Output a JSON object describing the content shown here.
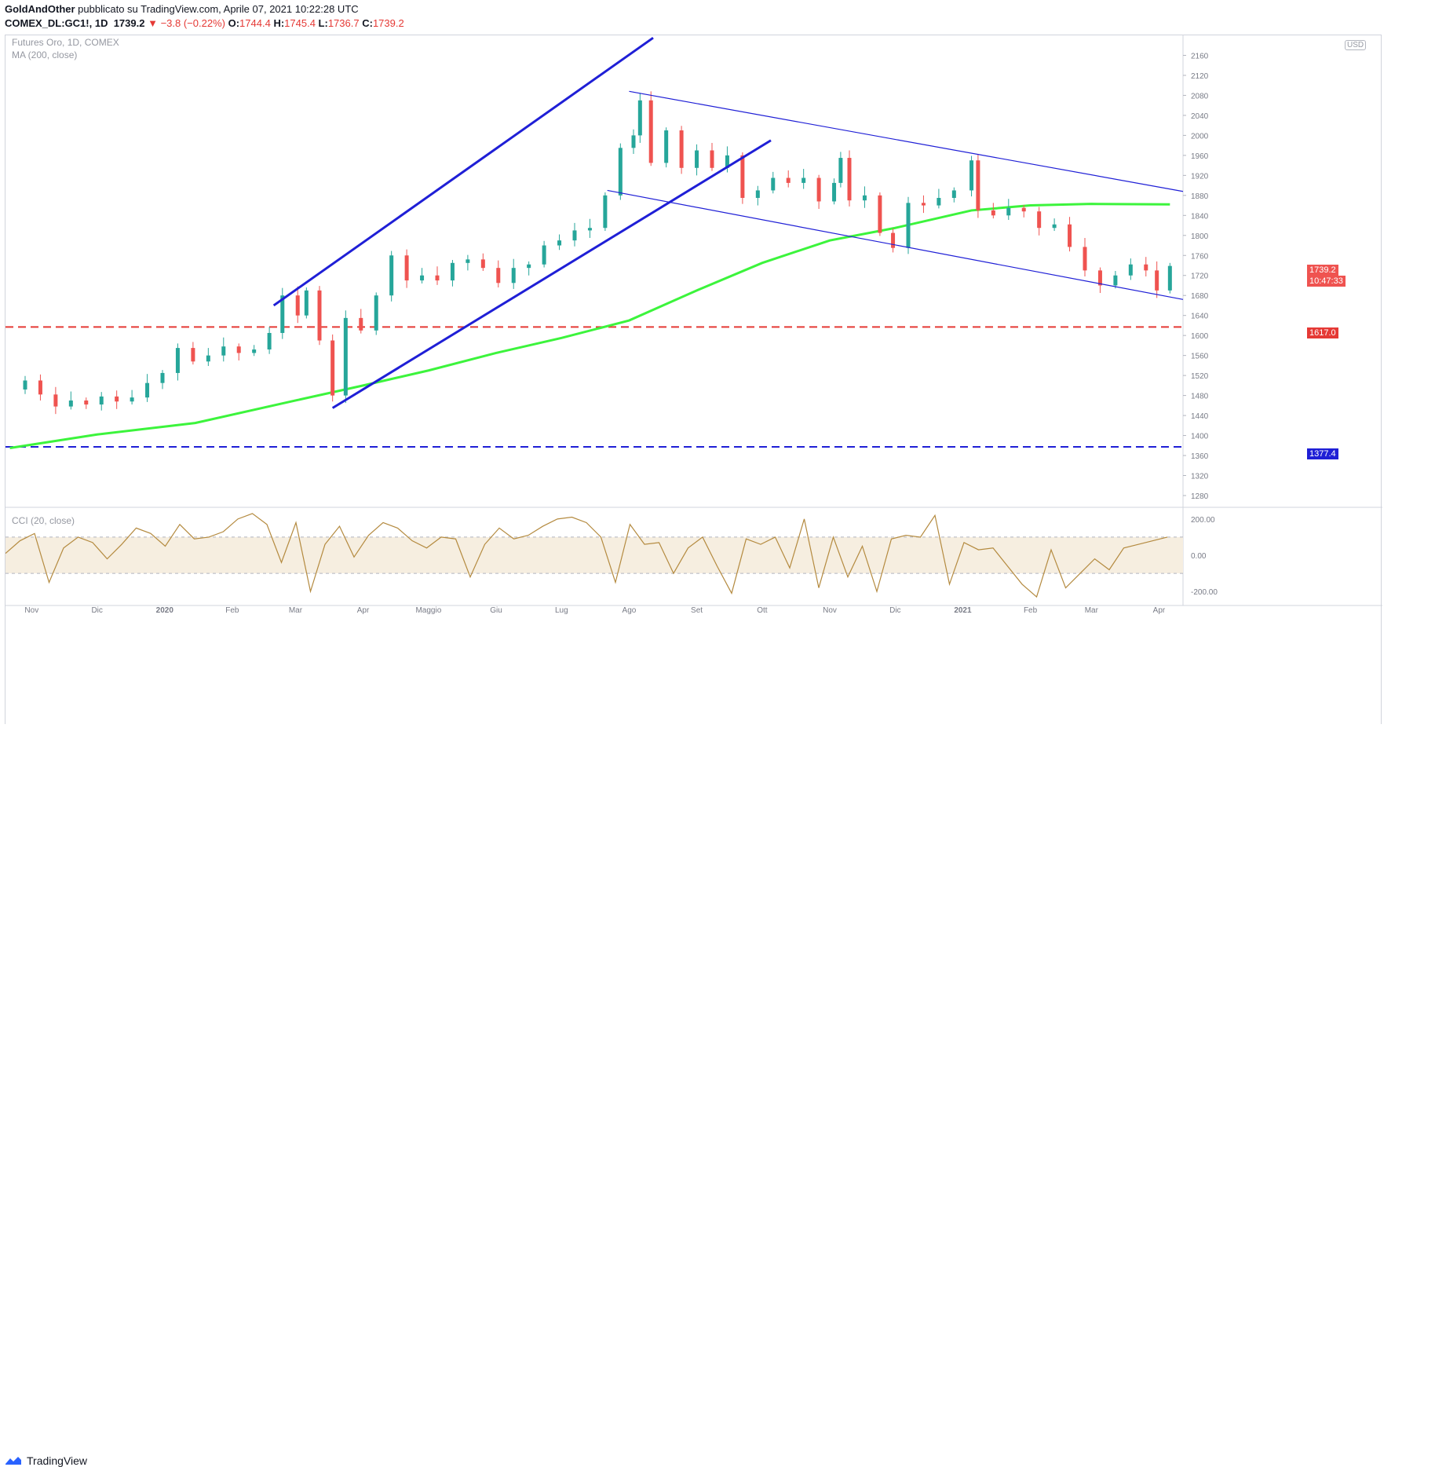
{
  "header": {
    "author": "GoldAndOther",
    "published": "pubblicato su TradingView.com, Aprile 07, 2021 10:22:28 UTC",
    "symbol": "COMEX_DL:GC1!, 1D",
    "price": "1739.2",
    "change": "▼ −3.8 (−0.22%)",
    "o_label": "O:",
    "o_val": "1744.4",
    "h_label": "H:",
    "h_val": "1745.4",
    "l_label": "L:",
    "l_val": "1736.7",
    "c_label": "C:",
    "c_val": "1739.2"
  },
  "legend": {
    "instrument": "Futures Oro, 1D, COMEX",
    "ma": "MA (200, close)",
    "cci": "CCI (20, close)",
    "currency": "USD"
  },
  "tags": {
    "last_price": "1739.2",
    "countdown": "10:47:33",
    "red_level": "1617.0",
    "blue_level": "1377.4"
  },
  "footer": {
    "brand": "TradingView"
  },
  "colors": {
    "up": "#26a69a",
    "down": "#ef5350",
    "ma": "#3cf43c",
    "channel": "#1f1fd6",
    "red_line": "#e53935",
    "blue_line": "#1f1fd6",
    "cci": "#b48a3f",
    "cci_band": "#f6eee0"
  },
  "chart_data": {
    "type": "candlestick",
    "symbol": "COMEX_DL:GC1!",
    "timeframe": "1D",
    "price_axis": {
      "ticks": [
        1280,
        1320,
        1360,
        1400,
        1440,
        1480,
        1520,
        1560,
        1600,
        1640,
        1680,
        1720,
        1760,
        1800,
        1840,
        1880,
        1920,
        1960,
        2000,
        2040,
        2080,
        2120,
        2160
      ],
      "ylim": [
        1258,
        2200
      ]
    },
    "time_axis": {
      "labels": [
        "Nov",
        "Dic",
        "2020",
        "Feb",
        "Mar",
        "Apr",
        "Maggio",
        "Giu",
        "Lug",
        "Ago",
        "Set",
        "Ott",
        "Nov",
        "Dic",
        "2021",
        "Feb",
        "Mar",
        "Apr"
      ]
    },
    "price_series": [
      {
        "d": "2019-10-22",
        "c": 1492
      },
      {
        "d": "2019-10-29",
        "c": 1510
      },
      {
        "d": "2019-11-05",
        "c": 1482
      },
      {
        "d": "2019-11-12",
        "c": 1458
      },
      {
        "d": "2019-11-19",
        "c": 1470
      },
      {
        "d": "2019-11-26",
        "c": 1462
      },
      {
        "d": "2019-12-03",
        "c": 1478
      },
      {
        "d": "2019-12-10",
        "c": 1468
      },
      {
        "d": "2019-12-17",
        "c": 1476
      },
      {
        "d": "2019-12-24",
        "c": 1505
      },
      {
        "d": "2019-12-31",
        "c": 1525
      },
      {
        "d": "2020-01-07",
        "c": 1575
      },
      {
        "d": "2020-01-14",
        "c": 1548
      },
      {
        "d": "2020-01-21",
        "c": 1560
      },
      {
        "d": "2020-01-28",
        "c": 1578
      },
      {
        "d": "2020-02-04",
        "c": 1565
      },
      {
        "d": "2020-02-11",
        "c": 1572
      },
      {
        "d": "2020-02-18",
        "c": 1605
      },
      {
        "d": "2020-02-24",
        "c": 1680
      },
      {
        "d": "2020-03-02",
        "c": 1640
      },
      {
        "d": "2020-03-06",
        "c": 1690
      },
      {
        "d": "2020-03-12",
        "c": 1590
      },
      {
        "d": "2020-03-18",
        "c": 1480
      },
      {
        "d": "2020-03-24",
        "c": 1635
      },
      {
        "d": "2020-03-31",
        "c": 1610
      },
      {
        "d": "2020-04-07",
        "c": 1680
      },
      {
        "d": "2020-04-14",
        "c": 1760
      },
      {
        "d": "2020-04-21",
        "c": 1710
      },
      {
        "d": "2020-04-28",
        "c": 1720
      },
      {
        "d": "2020-05-05",
        "c": 1710
      },
      {
        "d": "2020-05-12",
        "c": 1745
      },
      {
        "d": "2020-05-19",
        "c": 1752
      },
      {
        "d": "2020-05-26",
        "c": 1735
      },
      {
        "d": "2020-06-02",
        "c": 1705
      },
      {
        "d": "2020-06-09",
        "c": 1735
      },
      {
        "d": "2020-06-16",
        "c": 1742
      },
      {
        "d": "2020-06-23",
        "c": 1780
      },
      {
        "d": "2020-06-30",
        "c": 1790
      },
      {
        "d": "2020-07-07",
        "c": 1810
      },
      {
        "d": "2020-07-14",
        "c": 1815
      },
      {
        "d": "2020-07-21",
        "c": 1880
      },
      {
        "d": "2020-07-28",
        "c": 1975
      },
      {
        "d": "2020-08-03",
        "c": 2000
      },
      {
        "d": "2020-08-06",
        "c": 2070
      },
      {
        "d": "2020-08-11",
        "c": 1945
      },
      {
        "d": "2020-08-18",
        "c": 2010
      },
      {
        "d": "2020-08-25",
        "c": 1935
      },
      {
        "d": "2020-09-01",
        "c": 1970
      },
      {
        "d": "2020-09-08",
        "c": 1935
      },
      {
        "d": "2020-09-15",
        "c": 1960
      },
      {
        "d": "2020-09-22",
        "c": 1875
      },
      {
        "d": "2020-09-29",
        "c": 1890
      },
      {
        "d": "2020-10-06",
        "c": 1915
      },
      {
        "d": "2020-10-13",
        "c": 1905
      },
      {
        "d": "2020-10-20",
        "c": 1915
      },
      {
        "d": "2020-10-27",
        "c": 1868
      },
      {
        "d": "2020-11-03",
        "c": 1905
      },
      {
        "d": "2020-11-06",
        "c": 1955
      },
      {
        "d": "2020-11-10",
        "c": 1870
      },
      {
        "d": "2020-11-17",
        "c": 1880
      },
      {
        "d": "2020-11-24",
        "c": 1805
      },
      {
        "d": "2020-11-30",
        "c": 1775
      },
      {
        "d": "2020-12-07",
        "c": 1865
      },
      {
        "d": "2020-12-14",
        "c": 1860
      },
      {
        "d": "2020-12-21",
        "c": 1875
      },
      {
        "d": "2020-12-28",
        "c": 1890
      },
      {
        "d": "2021-01-05",
        "c": 1950
      },
      {
        "d": "2021-01-08",
        "c": 1850
      },
      {
        "d": "2021-01-15",
        "c": 1840
      },
      {
        "d": "2021-01-22",
        "c": 1855
      },
      {
        "d": "2021-01-29",
        "c": 1848
      },
      {
        "d": "2021-02-05",
        "c": 1815
      },
      {
        "d": "2021-02-12",
        "c": 1822
      },
      {
        "d": "2021-02-19",
        "c": 1777
      },
      {
        "d": "2021-02-26",
        "c": 1730
      },
      {
        "d": "2021-03-05",
        "c": 1700
      },
      {
        "d": "2021-03-12",
        "c": 1720
      },
      {
        "d": "2021-03-19",
        "c": 1742
      },
      {
        "d": "2021-03-26",
        "c": 1730
      },
      {
        "d": "2021-03-31",
        "c": 1690
      },
      {
        "d": "2021-04-06",
        "c": 1739
      }
    ],
    "ma200": [
      {
        "d": "2019-10-22",
        "v": 1375
      },
      {
        "d": "2019-12-01",
        "v": 1402
      },
      {
        "d": "2020-01-15",
        "v": 1425
      },
      {
        "d": "2020-03-01",
        "v": 1470
      },
      {
        "d": "2020-04-01",
        "v": 1500
      },
      {
        "d": "2020-05-01",
        "v": 1530
      },
      {
        "d": "2020-06-01",
        "v": 1565
      },
      {
        "d": "2020-07-01",
        "v": 1595
      },
      {
        "d": "2020-08-01",
        "v": 1630
      },
      {
        "d": "2020-09-01",
        "v": 1690
      },
      {
        "d": "2020-10-01",
        "v": 1745
      },
      {
        "d": "2020-11-01",
        "v": 1790
      },
      {
        "d": "2020-12-01",
        "v": 1815
      },
      {
        "d": "2021-01-05",
        "v": 1850
      },
      {
        "d": "2021-02-01",
        "v": 1860
      },
      {
        "d": "2021-03-01",
        "v": 1863
      },
      {
        "d": "2021-04-06",
        "v": 1862
      }
    ],
    "levels": [
      {
        "value": 1617.0,
        "style": "dashed",
        "color": "red"
      },
      {
        "value": 1377.4,
        "style": "dashed",
        "color": "blue"
      }
    ],
    "cci": {
      "ticks": [
        200,
        0,
        -200
      ],
      "band": [
        100,
        -100
      ],
      "values": [
        10,
        80,
        120,
        -150,
        40,
        100,
        70,
        -20,
        60,
        150,
        120,
        50,
        170,
        90,
        100,
        130,
        200,
        230,
        170,
        -40,
        180,
        -200,
        60,
        160,
        -10,
        110,
        180,
        150,
        80,
        40,
        100,
        90,
        -120,
        60,
        150,
        90,
        110,
        160,
        200,
        210,
        180,
        100,
        -150,
        170,
        60,
        70,
        -100,
        40,
        100,
        -60,
        -210,
        90,
        60,
        100,
        -70,
        200,
        -180,
        100,
        -120,
        50,
        -200,
        90,
        110,
        100,
        220,
        -160,
        70,
        30,
        40,
        -60,
        -160,
        -230,
        30,
        -180,
        -100,
        -20,
        -80,
        40,
        60,
        80,
        100
      ]
    }
  }
}
